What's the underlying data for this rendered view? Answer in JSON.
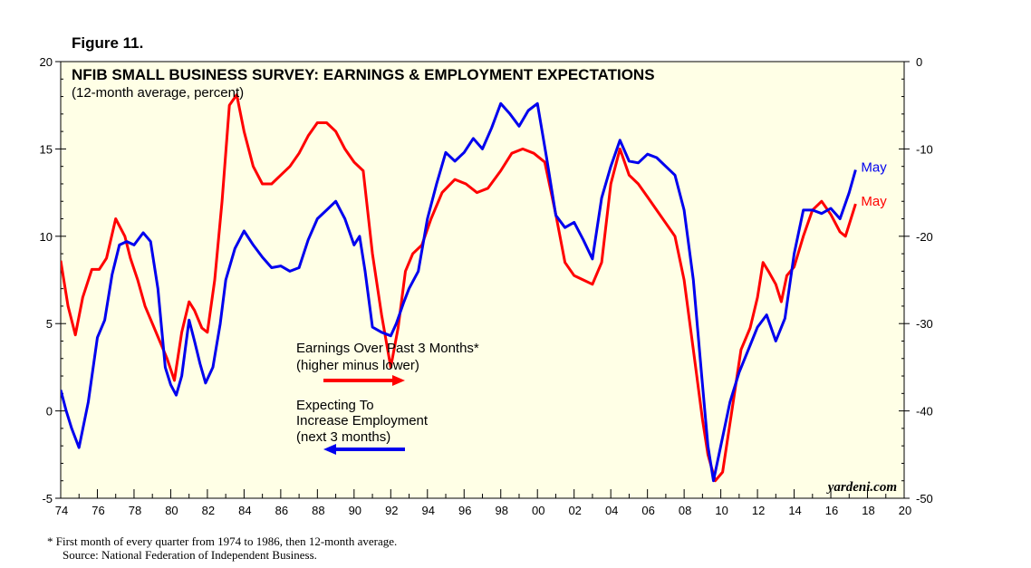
{
  "figure_label": "Figure 11.",
  "footnote": {
    "line1": "*  First month of every quarter from 1974 to 1986, then 12-month average.",
    "line2": "Source: National Federation of Independent Business."
  },
  "colors": {
    "earnings": "#ff0000",
    "employment": "#0000ee",
    "plot_bg": "#ffffe6"
  },
  "chart_data": {
    "type": "line",
    "title": "NFIB SMALL BUSINESS SURVEY: EARNINGS & EMPLOYMENT EXPECTATIONS",
    "subtitle": "(12-month average, percent)",
    "credit": "yardeni.com",
    "xlim": [
      1974,
      2020
    ],
    "x_ticks": [
      1974,
      1976,
      1978,
      1980,
      1982,
      1984,
      1986,
      1988,
      1990,
      1992,
      1994,
      1996,
      1998,
      2000,
      2002,
      2004,
      2006,
      2008,
      2010,
      2012,
      2014,
      2016,
      2018,
      2020
    ],
    "x_tick_labels": [
      "74",
      "76",
      "78",
      "80",
      "82",
      "84",
      "86",
      "88",
      "90",
      "92",
      "94",
      "96",
      "98",
      "00",
      "02",
      "04",
      "06",
      "08",
      "10",
      "12",
      "14",
      "16",
      "18",
      "20"
    ],
    "left_axis": {
      "ylim": [
        -5,
        20
      ],
      "ticks": [
        20,
        15,
        10,
        5,
        0,
        -5
      ],
      "tick_labels": [
        "20",
        "15",
        "10",
        "5",
        "0",
        "-5"
      ]
    },
    "right_axis": {
      "ylim": [
        -50,
        0
      ],
      "ticks": [
        0,
        -10,
        -20,
        -30,
        -40,
        -50
      ],
      "tick_labels": [
        "0",
        "-10",
        "-20",
        "-30",
        "-40",
        "-50"
      ]
    },
    "series": [
      {
        "name": "Expecting To Increase Employment (next 3 months)",
        "axis": "left",
        "color": "#0000ee",
        "end_label": "May",
        "x": [
          1974,
          1974.3,
          1974.6,
          1975,
          1975.5,
          1976,
          1976.4,
          1976.8,
          1977.2,
          1977.6,
          1978,
          1978.5,
          1978.9,
          1979.3,
          1979.7,
          1980,
          1980.3,
          1980.6,
          1981,
          1981.3,
          1981.6,
          1981.9,
          1982.3,
          1982.7,
          1983,
          1983.5,
          1984,
          1984.5,
          1985,
          1985.5,
          1986,
          1986.5,
          1987,
          1987.5,
          1988,
          1988.5,
          1989,
          1989.5,
          1990,
          1990.3,
          1990.6,
          1991,
          1991.5,
          1992,
          1992.3,
          1992.7,
          1993,
          1993.5,
          1994,
          1994.5,
          1995,
          1995.5,
          1996,
          1996.5,
          1997,
          1997.5,
          1998,
          1998.5,
          1999,
          1999.5,
          2000,
          2000.5,
          2001,
          2001.5,
          2002,
          2002.5,
          2003,
          2003.5,
          2004,
          2004.5,
          2005,
          2005.5,
          2006,
          2006.5,
          2007,
          2007.5,
          2008,
          2008.5,
          2009,
          2009.3,
          2009.6,
          2010,
          2010.5,
          2011,
          2011.5,
          2012,
          2012.5,
          2013,
          2013.5,
          2014,
          2014.5,
          2015,
          2015.5,
          2016,
          2016.5,
          2017,
          2017.35
        ],
        "values": [
          1.2,
          0.0,
          -1.0,
          -2.1,
          0.5,
          4.2,
          5.2,
          7.8,
          9.5,
          9.7,
          9.5,
          10.2,
          9.7,
          7.0,
          2.5,
          1.5,
          0.9,
          2.0,
          5.2,
          4.0,
          2.7,
          1.6,
          2.5,
          5.0,
          7.5,
          9.3,
          10.3,
          9.5,
          8.8,
          8.2,
          8.3,
          8.0,
          8.2,
          9.8,
          11.0,
          11.5,
          12.0,
          11.0,
          9.5,
          10.0,
          8.0,
          4.8,
          4.5,
          4.3,
          5.0,
          6.2,
          7.0,
          8.0,
          11.0,
          13.0,
          14.8,
          14.3,
          14.8,
          15.6,
          15.0,
          16.2,
          17.6,
          17.0,
          16.3,
          17.2,
          17.6,
          14.5,
          11.2,
          10.5,
          10.8,
          9.8,
          8.7,
          12.2,
          14.0,
          15.5,
          14.3,
          14.2,
          14.7,
          14.5,
          14.0,
          13.5,
          11.5,
          7.5,
          1.5,
          -2.0,
          -4.0,
          -2.0,
          0.5,
          2.2,
          3.5,
          4.8,
          5.5,
          4.0,
          5.3,
          9.0,
          11.5,
          11.5,
          11.3,
          11.6,
          11.0,
          12.5,
          13.8
        ]
      },
      {
        "name": "Earnings Over Past 3 Months* (higher minus lower)",
        "axis": "right",
        "color": "#ff0000",
        "end_label": "May",
        "x": [
          1974,
          1974.4,
          1974.8,
          1975.2,
          1975.7,
          1976.1,
          1976.5,
          1977,
          1977.5,
          1977.8,
          1978.2,
          1978.6,
          1979,
          1979.4,
          1979.8,
          1980.2,
          1980.6,
          1981,
          1981.3,
          1981.7,
          1982,
          1982.4,
          1982.8,
          1983.2,
          1983.6,
          1984,
          1984.5,
          1985,
          1985.5,
          1986,
          1986.5,
          1987,
          1987.5,
          1988,
          1988.5,
          1989,
          1989.5,
          1990,
          1990.5,
          1991,
          1991.5,
          1992,
          1992.4,
          1992.8,
          1993.2,
          1993.7,
          1994.2,
          1994.8,
          1995.5,
          1996.1,
          1996.7,
          1997.3,
          1998,
          1998.6,
          1999.2,
          1999.8,
          2000.4,
          2001,
          2001.5,
          2002,
          2002.5,
          2003,
          2003.5,
          2004,
          2004.5,
          2005,
          2005.5,
          2006,
          2006.5,
          2007,
          2007.5,
          2008,
          2008.5,
          2009,
          2009.3,
          2009.7,
          2010.1,
          2010.6,
          2011.1,
          2011.6,
          2012,
          2012.3,
          2012.6,
          2013,
          2013.3,
          2013.6,
          2014,
          2014.5,
          2015,
          2015.5,
          2016,
          2016.5,
          2016.8,
          2017.35
        ],
        "values": [
          -22.8,
          -28.0,
          -31.3,
          -27.0,
          -23.8,
          -23.8,
          -22.5,
          -18.0,
          -20.0,
          -22.5,
          -25.0,
          -28.0,
          -30.0,
          -32.0,
          -34.0,
          -36.5,
          -31.0,
          -27.5,
          -28.5,
          -30.5,
          -31.0,
          -25.0,
          -16.0,
          -5.0,
          -3.8,
          -8.0,
          -12.0,
          -14.0,
          -14.0,
          -13.0,
          -12.0,
          -10.5,
          -8.5,
          -7.0,
          -7.0,
          -8.0,
          -10.0,
          -11.5,
          -12.5,
          -22.0,
          -29.0,
          -35.0,
          -30.5,
          -24.0,
          -22.0,
          -21.0,
          -18.0,
          -15.0,
          -13.5,
          -14.0,
          -15.0,
          -14.5,
          -12.5,
          -10.5,
          -10.0,
          -10.5,
          -11.5,
          -17.5,
          -23.0,
          -24.5,
          -25.0,
          -25.5,
          -23.0,
          -14.0,
          -10.0,
          -13.0,
          -14.0,
          -15.5,
          -17.0,
          -18.5,
          -20.0,
          -25.0,
          -33.0,
          -41.0,
          -45.0,
          -48.0,
          -47.0,
          -40.0,
          -33.0,
          -30.5,
          -27.0,
          -23.0,
          -24.0,
          -25.5,
          -27.5,
          -24.5,
          -23.5,
          -20.0,
          -17.0,
          -16.0,
          -17.5,
          -19.5,
          -20.0,
          -16.3
        ]
      }
    ],
    "annotations": {
      "earnings_line1": "Earnings Over Past 3 Months*",
      "earnings_line2": "(higher minus lower)",
      "employment_line1": "Expecting To",
      "employment_line2": "Increase Employment",
      "employment_line3": "(next 3 months)"
    }
  }
}
